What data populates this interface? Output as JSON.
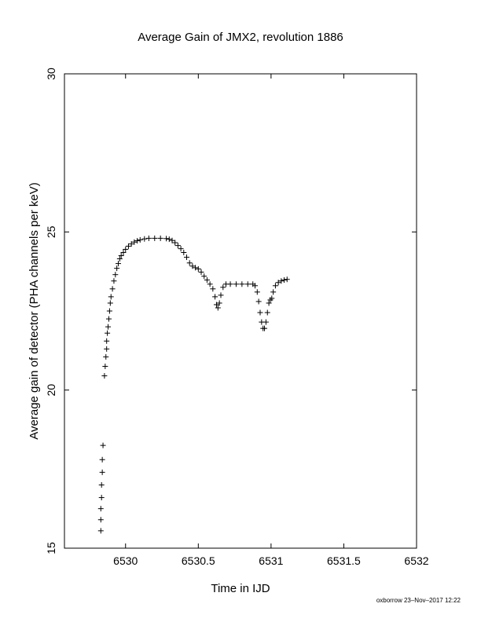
{
  "chart_data": {
    "type": "scatter",
    "title": "Average Gain of JMX2, revolution 1886",
    "xlabel": "Time in IJD",
    "ylabel": "Average gain of detector (PHA channels per keV)",
    "xlim": [
      6529.58,
      6532
    ],
    "ylim": [
      15,
      30
    ],
    "x_ticks": [
      6530,
      6530.5,
      6531,
      6531.5,
      6532
    ],
    "x_tick_labels": [
      "6530",
      "6530.5",
      "6531",
      "6531.5",
      "6532"
    ],
    "y_ticks": [
      15,
      20,
      25,
      30
    ],
    "y_tick_labels": [
      "15",
      "20",
      "25",
      "30"
    ],
    "marker": "+",
    "marker_color": "#000000",
    "grid": false,
    "series": [
      {
        "points": [
          [
            6529.83,
            15.55
          ],
          [
            6529.83,
            15.9
          ],
          [
            6529.83,
            16.25
          ],
          [
            6529.835,
            16.6
          ],
          [
            6529.835,
            17.0
          ],
          [
            6529.84,
            17.4
          ],
          [
            6529.84,
            17.8
          ],
          [
            6529.845,
            18.25
          ],
          [
            6529.855,
            20.45
          ],
          [
            6529.86,
            20.75
          ],
          [
            6529.865,
            21.05
          ],
          [
            6529.87,
            21.3
          ],
          [
            6529.87,
            21.55
          ],
          [
            6529.875,
            21.8
          ],
          [
            6529.88,
            22.0
          ],
          [
            6529.885,
            22.25
          ],
          [
            6529.89,
            22.5
          ],
          [
            6529.895,
            22.75
          ],
          [
            6529.9,
            22.95
          ],
          [
            6529.91,
            23.2
          ],
          [
            6529.92,
            23.45
          ],
          [
            6529.93,
            23.65
          ],
          [
            6529.94,
            23.85
          ],
          [
            6529.95,
            24.0
          ],
          [
            6529.96,
            24.15
          ],
          [
            6529.97,
            24.25
          ],
          [
            6529.985,
            24.35
          ],
          [
            6530.0,
            24.45
          ],
          [
            6530.02,
            24.55
          ],
          [
            6530.04,
            24.62
          ],
          [
            6530.06,
            24.68
          ],
          [
            6530.08,
            24.72
          ],
          [
            6530.1,
            24.75
          ],
          [
            6530.13,
            24.78
          ],
          [
            6530.16,
            24.8
          ],
          [
            6530.2,
            24.8
          ],
          [
            6530.24,
            24.8
          ],
          [
            6530.28,
            24.79
          ],
          [
            6530.3,
            24.77
          ],
          [
            6530.32,
            24.73
          ],
          [
            6530.34,
            24.66
          ],
          [
            6530.36,
            24.57
          ],
          [
            6530.38,
            24.47
          ],
          [
            6530.4,
            24.35
          ],
          [
            6530.42,
            24.2
          ],
          [
            6530.44,
            24.02
          ],
          [
            6530.46,
            23.92
          ],
          [
            6530.48,
            23.87
          ],
          [
            6530.5,
            23.83
          ],
          [
            6530.52,
            23.73
          ],
          [
            6530.54,
            23.6
          ],
          [
            6530.56,
            23.48
          ],
          [
            6530.58,
            23.35
          ],
          [
            6530.6,
            23.2
          ],
          [
            6530.615,
            22.95
          ],
          [
            6530.625,
            22.7
          ],
          [
            6530.635,
            22.6
          ],
          [
            6530.645,
            22.75
          ],
          [
            6530.655,
            23.0
          ],
          [
            6530.67,
            23.25
          ],
          [
            6530.69,
            23.35
          ],
          [
            6530.72,
            23.35
          ],
          [
            6530.76,
            23.35
          ],
          [
            6530.8,
            23.35
          ],
          [
            6530.84,
            23.35
          ],
          [
            6530.875,
            23.35
          ],
          [
            6530.89,
            23.3
          ],
          [
            6530.905,
            23.1
          ],
          [
            6530.915,
            22.8
          ],
          [
            6530.925,
            22.45
          ],
          [
            6530.935,
            22.15
          ],
          [
            6530.945,
            21.95
          ],
          [
            6530.955,
            21.95
          ],
          [
            6530.965,
            22.15
          ],
          [
            6530.975,
            22.45
          ],
          [
            6530.985,
            22.75
          ],
          [
            6530.995,
            22.85
          ],
          [
            6531.005,
            22.9
          ],
          [
            6531.015,
            23.1
          ],
          [
            6531.03,
            23.3
          ],
          [
            6531.05,
            23.4
          ],
          [
            6531.07,
            23.45
          ],
          [
            6531.09,
            23.48
          ],
          [
            6531.11,
            23.5
          ]
        ]
      }
    ]
  },
  "footer": {
    "stamp": "oxborrow 23–Nov–2017 12:22"
  }
}
